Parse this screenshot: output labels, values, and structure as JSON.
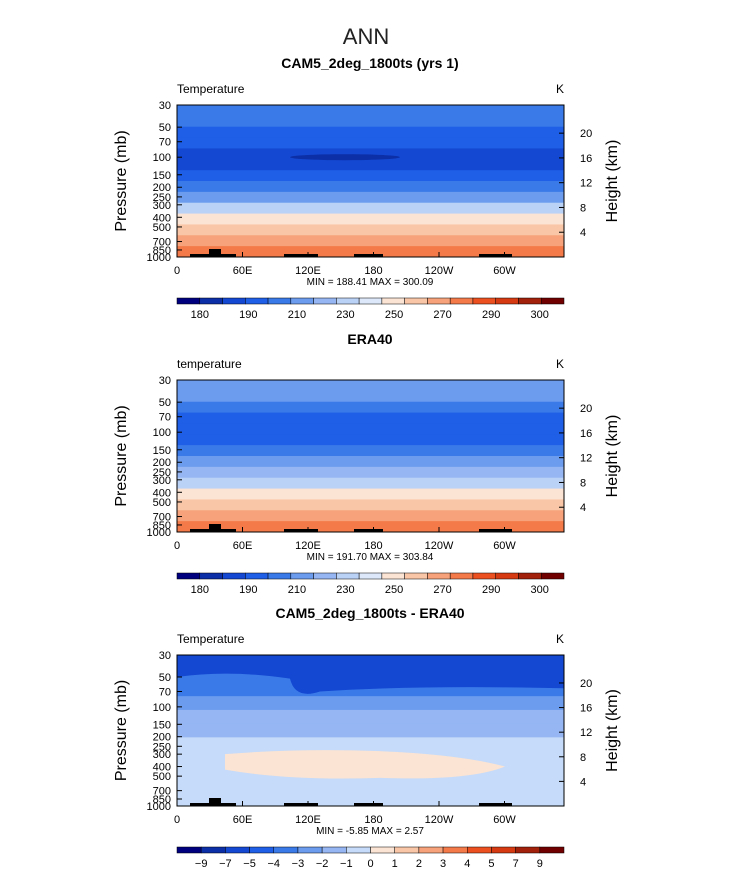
{
  "figure_title": "ANN",
  "chart_data": [
    {
      "type": "heatmap",
      "title": "CAM5_2deg_1800ts (yrs 1)",
      "left_label": "Temperature",
      "units": "K",
      "ylabel": "Pressure (mb)",
      "ylabel_right": "Height (km)",
      "xticks": [
        "0",
        "60E",
        "120E",
        "180",
        "120W",
        "60W"
      ],
      "yticks": [
        "30",
        "50",
        "70",
        "100",
        "150",
        "200",
        "250",
        "300",
        "400",
        "500",
        "700",
        "850",
        "1000"
      ],
      "yticks_right": [
        "20",
        "16",
        "12",
        "8",
        "4"
      ],
      "stats": "MIN = 188.41   MAX = 300.09",
      "levels": [
        180,
        190,
        200,
        210,
        220,
        230,
        240,
        250,
        260,
        270,
        280,
        290,
        300
      ],
      "colorbar_labels": [
        "180",
        "190",
        "210",
        "230",
        "250",
        "270",
        "290",
        "300"
      ],
      "layer_levels_top_to_bottom": [
        220,
        215,
        210,
        205,
        200,
        200,
        210,
        220,
        230,
        250,
        265,
        280,
        290,
        297
      ],
      "pressure_range": [
        30,
        1000
      ],
      "min": 188.41,
      "max": 300.09
    },
    {
      "type": "heatmap",
      "title": "ERA40",
      "left_label": "temperature",
      "units": "K",
      "ylabel": "Pressure (mb)",
      "ylabel_right": "Height (km)",
      "xticks": [
        "0",
        "60E",
        "120E",
        "180",
        "120W",
        "60W"
      ],
      "yticks": [
        "30",
        "50",
        "70",
        "100",
        "150",
        "200",
        "250",
        "300",
        "400",
        "500",
        "700",
        "850",
        "1000"
      ],
      "yticks_right": [
        "20",
        "16",
        "12",
        "8",
        "4"
      ],
      "stats": "MIN = 191.70   MAX = 303.84",
      "levels": [
        180,
        190,
        200,
        210,
        220,
        230,
        240,
        250,
        260,
        270,
        280,
        290,
        300
      ],
      "colorbar_labels": [
        "180",
        "190",
        "210",
        "230",
        "250",
        "270",
        "290",
        "300"
      ],
      "layer_levels_top_to_bottom": [
        230,
        222,
        215,
        210,
        205,
        205,
        215,
        225,
        235,
        250,
        265,
        280,
        290,
        297
      ],
      "pressure_range": [
        30,
        1000
      ],
      "min": 191.7,
      "max": 303.84
    },
    {
      "type": "heatmap",
      "title": "CAM5_2deg_1800ts - ERA40",
      "left_label": "Temperature",
      "units": "K",
      "ylabel": "Pressure (mb)",
      "ylabel_right": "Height (km)",
      "xticks": [
        "0",
        "60E",
        "120E",
        "180",
        "120W",
        "60W"
      ],
      "yticks": [
        "30",
        "50",
        "70",
        "100",
        "150",
        "200",
        "250",
        "300",
        "400",
        "500",
        "700",
        "850",
        "1000"
      ],
      "yticks_right": [
        "20",
        "16",
        "12",
        "8",
        "4"
      ],
      "stats": "MIN =   -5.85   MAX =    2.57",
      "levels": [
        -9,
        -7,
        -5,
        -4,
        -3,
        -2,
        -1,
        0,
        1,
        2,
        3,
        4,
        5,
        7,
        9
      ],
      "colorbar_labels": [
        "−9",
        "−7",
        "−5",
        "−4",
        "−3",
        "−2",
        "−1",
        "0",
        "1",
        "2",
        "3",
        "4",
        "5",
        "7",
        "9"
      ],
      "layer_levels_top_to_bottom": [
        -4,
        -3.5,
        -3,
        -2,
        -1.5,
        -1,
        -0.5,
        -0.5,
        -0.5,
        -0.5,
        -0.5
      ],
      "pressure_range": [
        30,
        1000
      ],
      "min": -5.85,
      "max": 2.57
    }
  ],
  "colors": {
    "temperature_palette": [
      "#00007e",
      "#0c2ea6",
      "#1448d2",
      "#1f5ee6",
      "#3a7ae8",
      "#6c9cee",
      "#95b6f2",
      "#bbd2f7",
      "#dde9fb",
      "#fbe4d3",
      "#f9c6a7",
      "#f7a27a",
      "#f47a4a",
      "#ec5020",
      "#d63a12",
      "#a2210a",
      "#700000"
    ],
    "difference_palette": [
      "#00007e",
      "#0c2ea6",
      "#1448d2",
      "#1f5ee6",
      "#3a7ae8",
      "#6c9cee",
      "#95b6f2",
      "#c6dbf9",
      "#fbe4d3",
      "#f9c6a7",
      "#f7a27a",
      "#f47a4a",
      "#ec5020",
      "#d63a12",
      "#a2210a",
      "#700000"
    ]
  }
}
